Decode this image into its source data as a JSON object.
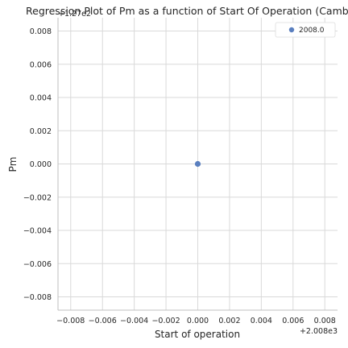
{
  "chart_data": {
    "type": "scatter",
    "title": "Regression Plot of Pm as a function of Start Of Operation (Cambo",
    "xlabel": "Start of operation",
    "ylabel": "Pm",
    "x_offset_label": "+2.008e3",
    "y_offset_label": "+1.27e2",
    "xlim": [
      -0.0088,
      0.0088
    ],
    "ylim": [
      -0.0088,
      0.0088
    ],
    "x_ticks": [
      -0.008,
      -0.006,
      -0.004,
      -0.002,
      0.0,
      0.002,
      0.004,
      0.006,
      0.008
    ],
    "x_tick_labels": [
      "−0.008",
      "−0.006",
      "−0.004",
      "−0.002",
      "0.000",
      "0.002",
      "0.004",
      "0.006",
      "0.008"
    ],
    "y_ticks": [
      0.008,
      0.006,
      0.004,
      0.002,
      0.0,
      -0.002,
      -0.004,
      -0.006,
      -0.008
    ],
    "y_tick_labels": [
      "0.008",
      "0.006",
      "0.004",
      "0.002",
      "0.000",
      "−0.002",
      "−0.004",
      "−0.006",
      "−0.008"
    ],
    "grid": true,
    "legend_position": "top-right",
    "series": [
      {
        "name": "2008.0",
        "color": "#5a7fbf",
        "points": [
          {
            "x": 0.0,
            "y": 0.0
          }
        ]
      }
    ]
  }
}
